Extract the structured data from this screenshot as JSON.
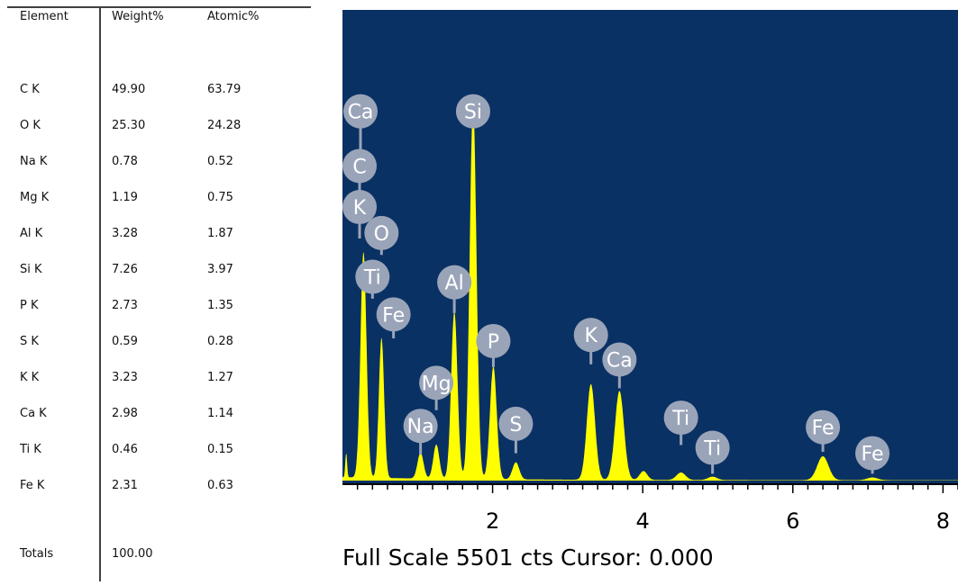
{
  "table": {
    "headers": [
      "Element",
      "Weight%",
      "Atomic%"
    ],
    "rows": [
      {
        "element": "C K",
        "weight": "49.90",
        "atomic": "63.79"
      },
      {
        "element": "O K",
        "weight": "25.30",
        "atomic": "24.28"
      },
      {
        "element": "Na K",
        "weight": "0.78",
        "atomic": "0.52"
      },
      {
        "element": "Mg K",
        "weight": "1.19",
        "atomic": "0.75"
      },
      {
        "element": "Al K",
        "weight": "3.28",
        "atomic": "1.87"
      },
      {
        "element": "Si K",
        "weight": "7.26",
        "atomic": "3.97"
      },
      {
        "element": "P K",
        "weight": "2.73",
        "atomic": "1.35"
      },
      {
        "element": "S K",
        "weight": "0.59",
        "atomic": "0.28"
      },
      {
        "element": "K K",
        "weight": "3.23",
        "atomic": "1.27"
      },
      {
        "element": "Ca K",
        "weight": "2.98",
        "atomic": "1.14"
      },
      {
        "element": "Ti K",
        "weight": "0.46",
        "atomic": "0.15"
      },
      {
        "element": "Fe K",
        "weight": "2.31",
        "atomic": "0.63"
      }
    ],
    "totals_label": "Totals",
    "totals_weight": "100.00"
  },
  "spectrum": {
    "footer_text": "Full Scale 5501 cts Cursor: 0.000",
    "colors": {
      "background": "#0a3164",
      "spectrum_fill": "#ffff00",
      "marker_circle": "#9aa4b8",
      "marker_text": "#ffffff",
      "axis": "#000000"
    }
  },
  "chart_data": {
    "type": "area",
    "xlabel": "",
    "ylabel": "",
    "xlim": [
      0,
      8.2
    ],
    "ylim": [
      0,
      5501
    ],
    "x_ticks": [
      2,
      4,
      6,
      8
    ],
    "x_tick_labels": [
      "2",
      "4",
      "6",
      "8"
    ],
    "grid": false,
    "full_scale_counts": 5501,
    "peaks": [
      {
        "x": 0.05,
        "counts": 350,
        "width": 0.012
      },
      {
        "x": 0.28,
        "counts": 3300,
        "width": 0.04
      },
      {
        "x": 0.52,
        "counts": 2050,
        "width": 0.035
      },
      {
        "x": 1.04,
        "counts": 380,
        "width": 0.04
      },
      {
        "x": 1.25,
        "counts": 500,
        "width": 0.04
      },
      {
        "x": 1.49,
        "counts": 2450,
        "width": 0.042
      },
      {
        "x": 1.74,
        "counts": 5500,
        "width": 0.045
      },
      {
        "x": 2.01,
        "counts": 1650,
        "width": 0.045
      },
      {
        "x": 2.31,
        "counts": 250,
        "width": 0.045
      },
      {
        "x": 3.31,
        "counts": 1400,
        "width": 0.055
      },
      {
        "x": 3.69,
        "counts": 1300,
        "width": 0.06
      },
      {
        "x": 4.01,
        "counts": 130,
        "width": 0.05
      },
      {
        "x": 4.51,
        "counts": 110,
        "width": 0.06
      },
      {
        "x": 4.93,
        "counts": 50,
        "width": 0.06
      },
      {
        "x": 6.4,
        "counts": 350,
        "width": 0.075
      },
      {
        "x": 7.06,
        "counts": 40,
        "width": 0.07
      }
    ],
    "element_markers": [
      {
        "label": "Ca",
        "x": 0.24,
        "counts": 5400,
        "tick_counts": 4820
      },
      {
        "label": "C",
        "x": 0.22,
        "counts": 4600,
        "tick_counts": 4080
      },
      {
        "label": "K",
        "x": 0.2,
        "counts": 4000,
        "tick_counts": 3540
      },
      {
        "label": "O",
        "x": 0.52,
        "counts": 3620,
        "tick_counts": 3300
      },
      {
        "label": "Ti",
        "x": 0.4,
        "counts": 2980,
        "tick_counts": 2660
      },
      {
        "label": "Fe",
        "x": 0.68,
        "counts": 2430,
        "tick_counts": 2080
      },
      {
        "label": "Al",
        "x": 1.49,
        "counts": 2900,
        "tick_counts": 2450
      },
      {
        "label": "Si",
        "x": 1.74,
        "counts": 5400,
        "tick_counts": 5200
      },
      {
        "label": "P",
        "x": 2.01,
        "counts": 2040,
        "tick_counts": 1660
      },
      {
        "label": "Mg",
        "x": 1.25,
        "counts": 1430,
        "tick_counts": 1030
      },
      {
        "label": "Na",
        "x": 1.04,
        "counts": 800,
        "tick_counts": 380
      },
      {
        "label": "S",
        "x": 2.31,
        "counts": 830,
        "tick_counts": 400
      },
      {
        "label": "K",
        "x": 3.31,
        "counts": 2130,
        "tick_counts": 1700
      },
      {
        "label": "Ca",
        "x": 3.69,
        "counts": 1770,
        "tick_counts": 1350
      },
      {
        "label": "Ti",
        "x": 4.51,
        "counts": 920,
        "tick_counts": 520
      },
      {
        "label": "Ti",
        "x": 4.93,
        "counts": 480,
        "tick_counts": 100
      },
      {
        "label": "Fe",
        "x": 6.4,
        "counts": 780,
        "tick_counts": 420
      },
      {
        "label": "Fe",
        "x": 7.06,
        "counts": 400,
        "tick_counts": 100
      }
    ]
  }
}
